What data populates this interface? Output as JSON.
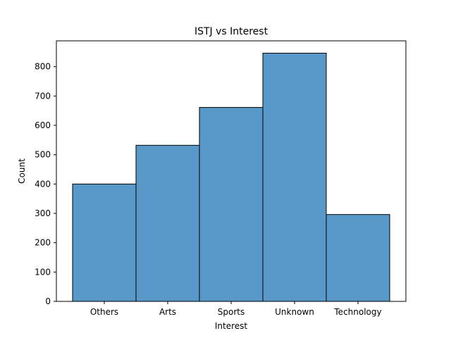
{
  "chart_data": {
    "type": "bar",
    "title": "ISTJ vs Interest",
    "xlabel": "Interest",
    "ylabel": "Count",
    "categories": [
      "Others",
      "Arts",
      "Sports",
      "Unknown",
      "Technology"
    ],
    "values": [
      400,
      532,
      661,
      846,
      296
    ],
    "ylim": [
      0,
      888
    ],
    "yticks": [
      0,
      100,
      200,
      300,
      400,
      500,
      600,
      700,
      800
    ],
    "grid": false,
    "bar_color": "#5899c9",
    "edge_color": "#000000"
  }
}
